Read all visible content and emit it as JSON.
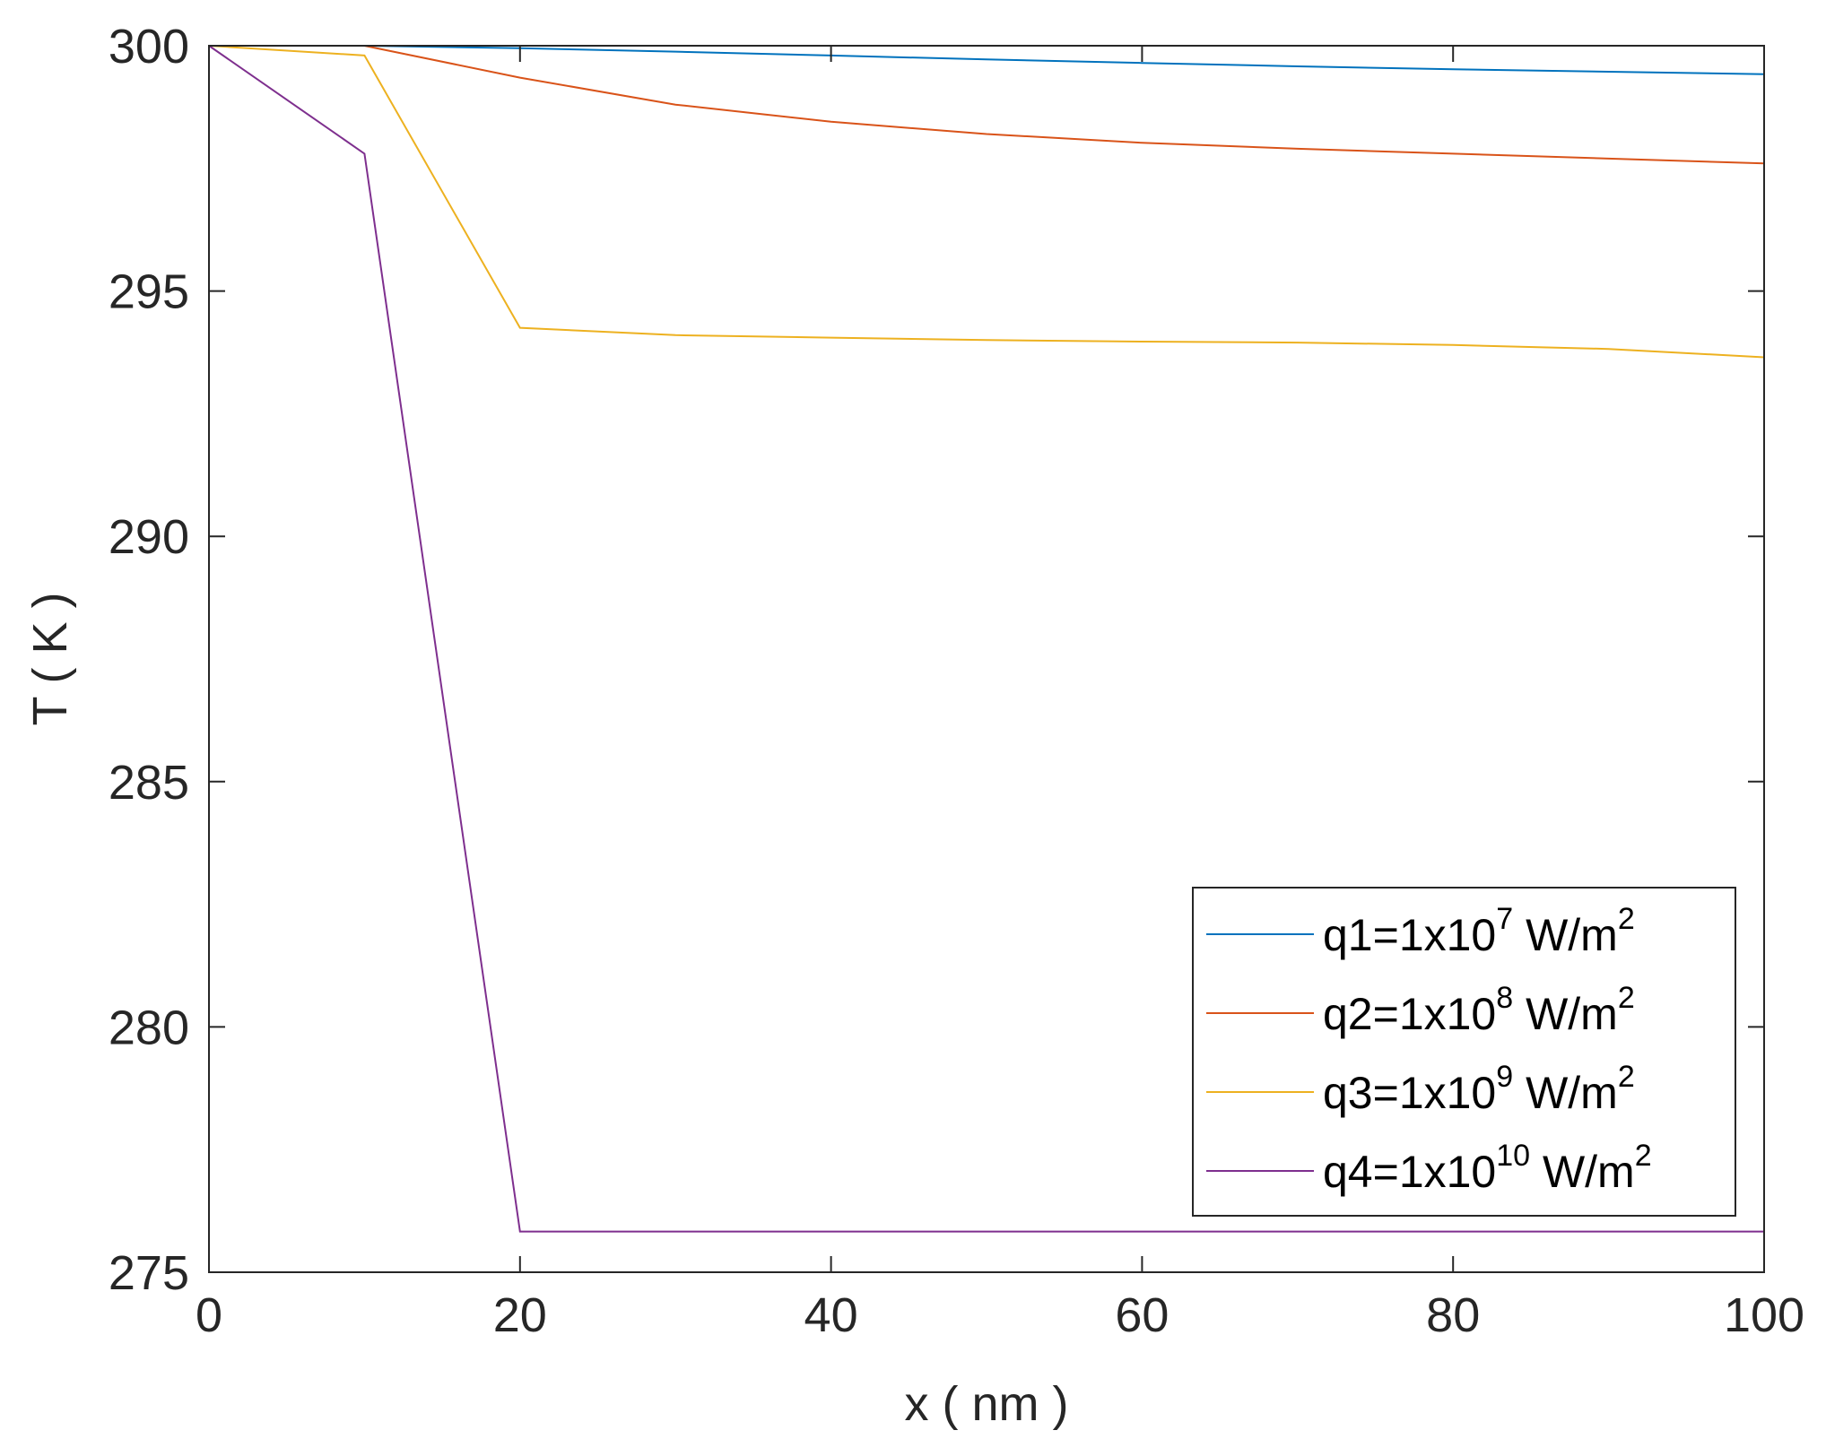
{
  "chart_data": {
    "type": "line",
    "title": "",
    "xlabel": "x ( nm )",
    "ylabel": "T ( K )",
    "xlim": [
      0,
      100
    ],
    "ylim": [
      275,
      300
    ],
    "xticks": [
      "0",
      "20",
      "40",
      "60",
      "80",
      "100"
    ],
    "yticks": [
      "275",
      "280",
      "285",
      "290",
      "295",
      "300"
    ],
    "grid": false,
    "legend_position": "bottom-right",
    "x": [
      0,
      10,
      20,
      30,
      40,
      50,
      60,
      70,
      80,
      90,
      100
    ],
    "series": [
      {
        "name": "q1=1x10^7 W/m^2",
        "label": {
          "prefix": "q1=1x10",
          "exp": "7",
          "unit": " W/m",
          "unit_exp": "2"
        },
        "color": "#0072BD",
        "values": [
          300,
          300,
          299.95,
          299.88,
          299.8,
          299.72,
          299.65,
          299.58,
          299.52,
          299.47,
          299.42
        ]
      },
      {
        "name": "q2=1x10^8 W/m^2",
        "label": {
          "prefix": "q2=1x10",
          "exp": "8",
          "unit": " W/m",
          "unit_exp": "2"
        },
        "color": "#D95319",
        "values": [
          300,
          300,
          299.35,
          298.8,
          298.45,
          298.2,
          298.02,
          297.9,
          297.8,
          297.7,
          297.6
        ]
      },
      {
        "name": "q3=1x10^9 W/m^2",
        "label": {
          "prefix": "q3=1x10",
          "exp": "9",
          "unit": " W/m",
          "unit_exp": "2"
        },
        "color": "#EDB120",
        "values": [
          300,
          299.8,
          294.25,
          294.1,
          294.05,
          294.0,
          293.97,
          293.95,
          293.9,
          293.82,
          293.65
        ]
      },
      {
        "name": "q4=1x10^10 W/m^2",
        "label": {
          "prefix": "q4=1x10",
          "exp": "10",
          "unit": " W/m",
          "unit_exp": "2"
        },
        "color": "#7E2F8E",
        "values": [
          300,
          297.8,
          275.83,
          275.83,
          275.83,
          275.83,
          275.83,
          275.83,
          275.83,
          275.83,
          275.83
        ]
      }
    ]
  }
}
